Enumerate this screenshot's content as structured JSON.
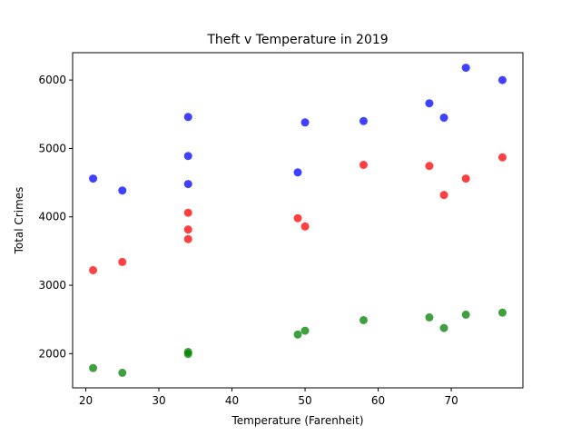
{
  "chart_data": {
    "type": "scatter",
    "title": "Theft v Temperature in 2019",
    "xlabel": "Temperature (Farenheit)",
    "ylabel": "Total Crimes",
    "xlim": [
      18.2,
      79.8
    ],
    "ylim": [
      1500,
      6400
    ],
    "xticks": [
      20,
      30,
      40,
      50,
      60,
      70
    ],
    "yticks": [
      2000,
      3000,
      4000,
      5000,
      6000
    ],
    "grid": false,
    "legend": "none",
    "series": [
      {
        "color": "#0000ff",
        "points": [
          [
            21,
            4560
          ],
          [
            25,
            4385
          ],
          [
            34,
            5460
          ],
          [
            34,
            4890
          ],
          [
            34,
            4480
          ],
          [
            49,
            4650
          ],
          [
            50,
            5380
          ],
          [
            58,
            5400
          ],
          [
            67,
            5660
          ],
          [
            69,
            5450
          ],
          [
            72,
            6180
          ],
          [
            77,
            6000
          ]
        ]
      },
      {
        "color": "#ff0000",
        "points": [
          [
            21,
            3220
          ],
          [
            25,
            3340
          ],
          [
            34,
            4060
          ],
          [
            34,
            3815
          ],
          [
            34,
            3675
          ],
          [
            49,
            3980
          ],
          [
            50,
            3860
          ],
          [
            58,
            4760
          ],
          [
            67,
            4745
          ],
          [
            69,
            4320
          ],
          [
            72,
            4560
          ],
          [
            77,
            4870
          ]
        ]
      },
      {
        "color": "#008000",
        "points": [
          [
            21,
            1790
          ],
          [
            25,
            1720
          ],
          [
            34,
            2025
          ],
          [
            34,
            1995
          ],
          [
            49,
            2280
          ],
          [
            50,
            2335
          ],
          [
            58,
            2490
          ],
          [
            67,
            2530
          ],
          [
            69,
            2375
          ],
          [
            72,
            2570
          ],
          [
            77,
            2600
          ]
        ]
      }
    ]
  }
}
